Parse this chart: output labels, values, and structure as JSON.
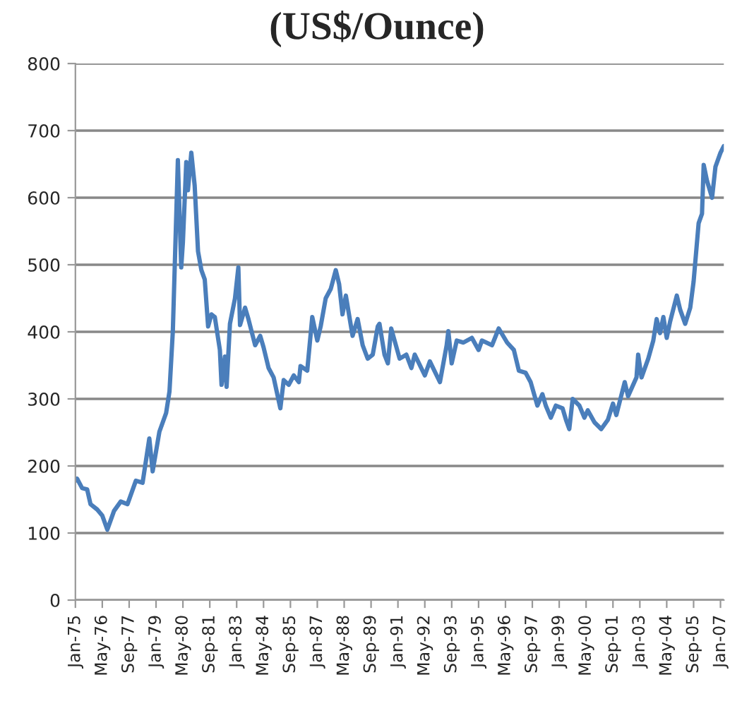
{
  "chart_data": {
    "type": "line",
    "title": "(US$/Ounce)",
    "x": [
      "1975-01",
      "1975-02",
      "1975-05",
      "1975-08",
      "1975-10",
      "1976-02",
      "1976-05",
      "1976-08",
      "1976-12",
      "1977-04",
      "1977-08",
      "1978-01",
      "1978-05",
      "1978-09",
      "1978-11",
      "1979-03",
      "1979-07",
      "1979-09",
      "1979-11",
      "1980-02",
      "1980-04",
      "1980-05",
      "1980-07",
      "1980-08",
      "1980-10",
      "1980-12",
      "1981-02",
      "1981-04",
      "1981-06",
      "1981-08",
      "1981-10",
      "1981-12",
      "1982-03",
      "1982-04",
      "1982-06",
      "1982-07",
      "1982-09",
      "1982-12",
      "1983-02",
      "1983-03",
      "1983-06",
      "1983-08",
      "1983-12",
      "1984-03",
      "1984-05",
      "1984-08",
      "1984-11",
      "1985-03",
      "1985-05",
      "1985-08",
      "1985-11",
      "1986-02",
      "1986-03",
      "1986-07",
      "1986-10",
      "1987-01",
      "1987-03",
      "1987-06",
      "1987-09",
      "1987-12",
      "1988-02",
      "1988-04",
      "1988-06",
      "1988-10",
      "1989-01",
      "1989-04",
      "1989-07",
      "1989-10",
      "1990-01",
      "1990-02",
      "1990-05",
      "1990-07",
      "1990-09",
      "1991-02",
      "1991-06",
      "1991-09",
      "1991-11",
      "1992-05",
      "1992-08",
      "1993-02",
      "1993-06",
      "1993-07",
      "1993-09",
      "1993-12",
      "1994-04",
      "1994-09",
      "1995-01",
      "1995-03",
      "1995-09",
      "1996-01",
      "1996-06",
      "1996-10",
      "1997-01",
      "1997-05",
      "1997-08",
      "1997-12",
      "1998-03",
      "1998-05",
      "1998-08",
      "1998-11",
      "1999-03",
      "1999-05",
      "1999-07",
      "1999-09",
      "2000-01",
      "2000-04",
      "2000-06",
      "2000-10",
      "2001-02",
      "2001-06",
      "2001-09",
      "2001-11",
      "2002-04",
      "2002-06",
      "2002-11",
      "2002-12",
      "2003-02",
      "2003-06",
      "2003-09",
      "2003-11",
      "2004-01",
      "2004-03",
      "2004-05",
      "2004-07",
      "2004-11",
      "2005-01",
      "2005-04",
      "2005-07",
      "2005-09",
      "2005-12",
      "2006-02",
      "2006-03",
      "2006-05",
      "2006-08",
      "2006-10",
      "2007-01",
      "2007-03"
    ],
    "series": [
      {
        "color": "#4a7ebb",
        "values": [
          178,
          181,
          167,
          165,
          143,
          135,
          126,
          105,
          133,
          147,
          143,
          178,
          175,
          241,
          192,
          251,
          279,
          311,
          401,
          656,
          496,
          534,
          653,
          611,
          667,
          618,
          520,
          492,
          478,
          408,
          426,
          422,
          373,
          321,
          363,
          318,
          412,
          450,
          496,
          410,
          436,
          419,
          380,
          394,
          377,
          346,
          332,
          286,
          328,
          321,
          335,
          325,
          349,
          342,
          422,
          387,
          408,
          450,
          464,
          492,
          471,
          426,
          454,
          394,
          419,
          380,
          360,
          366,
          408,
          412,
          366,
          353,
          405,
          360,
          366,
          346,
          366,
          335,
          356,
          325,
          380,
          401,
          353,
          387,
          384,
          391,
          373,
          387,
          380,
          405,
          384,
          373,
          342,
          339,
          325,
          290,
          307,
          290,
          272,
          290,
          286,
          269,
          255,
          300,
          290,
          272,
          283,
          265,
          255,
          269,
          293,
          276,
          325,
          304,
          332,
          366,
          332,
          360,
          387,
          419,
          398,
          422,
          391,
          415,
          454,
          433,
          412,
          436,
          475,
          562,
          576,
          649,
          625,
          600,
          646,
          667,
          677
        ]
      }
    ],
    "xlim": [
      "1975-01",
      "2007-03"
    ],
    "xticks": [
      {
        "value": "1975-01",
        "label": "Jan-75"
      },
      {
        "value": "1976-05",
        "label": "May-76"
      },
      {
        "value": "1977-09",
        "label": "Sep-77"
      },
      {
        "value": "1979-01",
        "label": "Jan-79"
      },
      {
        "value": "1980-05",
        "label": "May-80"
      },
      {
        "value": "1981-09",
        "label": "Sep-81"
      },
      {
        "value": "1983-01",
        "label": "Jan-83"
      },
      {
        "value": "1984-05",
        "label": "May-84"
      },
      {
        "value": "1985-09",
        "label": "Sep-85"
      },
      {
        "value": "1987-01",
        "label": "Jan-87"
      },
      {
        "value": "1988-05",
        "label": "May-88"
      },
      {
        "value": "1989-09",
        "label": "Sep-89"
      },
      {
        "value": "1991-01",
        "label": "Jan-91"
      },
      {
        "value": "1992-05",
        "label": "May-92"
      },
      {
        "value": "1993-09",
        "label": "Sep-93"
      },
      {
        "value": "1995-01",
        "label": "Jan-95"
      },
      {
        "value": "1996-05",
        "label": "May-96"
      },
      {
        "value": "1997-09",
        "label": "Sep-97"
      },
      {
        "value": "1999-01",
        "label": "Jan-99"
      },
      {
        "value": "2000-05",
        "label": "May-00"
      },
      {
        "value": "2001-09",
        "label": "Sep-01"
      },
      {
        "value": "2003-01",
        "label": "Jan-03"
      },
      {
        "value": "2004-05",
        "label": "May-04"
      },
      {
        "value": "2005-09",
        "label": "Sep-05"
      },
      {
        "value": "2007-01",
        "label": "Jan-07"
      }
    ],
    "ylim": [
      0,
      800
    ],
    "yticks": [
      0,
      100,
      200,
      300,
      400,
      500,
      600,
      700,
      800
    ],
    "grid": "y",
    "marker": "none",
    "line_style": "solid"
  }
}
